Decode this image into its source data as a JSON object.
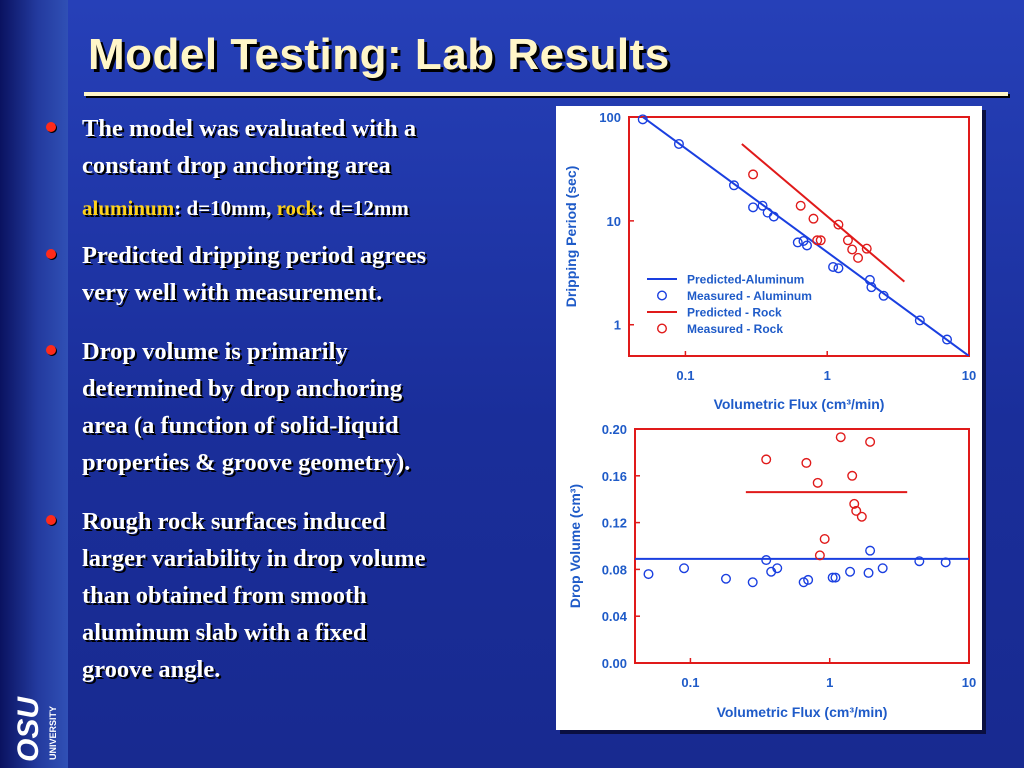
{
  "slide": {
    "title": "Model Testing: Lab Results",
    "bullet1_line1": "The model was evaluated with a",
    "bullet1_line2": "constant drop anchoring area",
    "sub_aluminum_label": "aluminum",
    "sub_aluminum_value": ": d=10mm, ",
    "sub_rock_label": "rock",
    "sub_rock_value": ": d=12mm",
    "bullet2_line1": "Predicted dripping period agrees",
    "bullet2_line2": "very well with measurement.",
    "bullet3_line1": "Drop volume is primarily",
    "bullet3_line2": "determined by drop anchoring",
    "bullet3_line3": "area (a function of solid-liquid",
    "bullet3_line4": "properties & groove geometry).",
    "bullet4_line1": "Rough rock surfaces induced",
    "bullet4_line2": "larger variability in drop volume",
    "bullet4_line3": "than obtained from smooth",
    "bullet4_line4": "aluminum slab with a fixed",
    "bullet4_line5": "groove angle.",
    "logo_text": "UNIVERSITY"
  },
  "colors": {
    "aluminum": "#1a3fe0",
    "rock": "#e01a1a",
    "axis_text": "#1f5bc8"
  },
  "chart_data": [
    {
      "type": "scatter",
      "xscale": "log",
      "yscale": "log",
      "xlim": [
        0.04,
        10
      ],
      "ylim": [
        0.5,
        100
      ],
      "xticks": [
        0.1,
        1,
        10
      ],
      "yticks": [
        1,
        10,
        100
      ],
      "xlabel": "Volumetric Flux (cm³/min)",
      "ylabel": "Dripping Period (sec)",
      "legend_position": "bottom-left",
      "legend": [
        "Predicted-Aluminum",
        "Measured - Aluminum",
        "Predicted - Rock",
        "Measured - Rock"
      ],
      "series": [
        {
          "name": "Predicted-Aluminum",
          "kind": "line",
          "color": "#1a3fe0",
          "x": [
            0.05,
            10
          ],
          "y": [
            100,
            0.5
          ]
        },
        {
          "name": "Measured - Aluminum",
          "kind": "points",
          "color": "#1a3fe0",
          "x": [
            0.05,
            0.09,
            0.22,
            0.3,
            0.35,
            0.38,
            0.42,
            0.62,
            0.68,
            0.72,
            1.1,
            1.2,
            2.0,
            2.05,
            2.5,
            4.5,
            7.0
          ],
          "y": [
            95,
            55,
            22,
            13.5,
            14,
            12,
            11,
            6.2,
            6.4,
            5.8,
            3.6,
            3.5,
            2.7,
            2.3,
            1.9,
            1.1,
            0.72
          ]
        },
        {
          "name": "Predicted - Rock",
          "kind": "line",
          "color": "#e01a1a",
          "x": [
            0.25,
            3.5
          ],
          "y": [
            55,
            2.6
          ]
        },
        {
          "name": "Measured - Rock",
          "kind": "points",
          "color": "#e01a1a",
          "x": [
            0.3,
            0.65,
            0.8,
            0.85,
            0.9,
            1.2,
            1.4,
            1.5,
            1.65,
            1.9
          ],
          "y": [
            28,
            14,
            10.5,
            6.5,
            6.5,
            9.2,
            6.5,
            5.3,
            4.4,
            5.4
          ]
        }
      ]
    },
    {
      "type": "scatter",
      "xscale": "log",
      "xlim": [
        0.04,
        10
      ],
      "ylim": [
        0,
        0.2
      ],
      "xticks": [
        0.1,
        1,
        10
      ],
      "yticks": [
        0.0,
        0.04,
        0.08,
        0.12,
        0.16,
        0.2
      ],
      "ytick_labels": [
        "0.00",
        "0.04",
        "0.08",
        "0.12",
        "0.16",
        "0.20"
      ],
      "xlabel": "Volumetric Flux (cm³/min)",
      "ylabel": "Drop Volume (cm³)",
      "series": [
        {
          "name": "Predicted-Aluminum",
          "kind": "line",
          "color": "#1a3fe0",
          "x": [
            0.04,
            10
          ],
          "y": [
            0.089,
            0.089
          ]
        },
        {
          "name": "Measured - Aluminum",
          "kind": "points",
          "color": "#1a3fe0",
          "x": [
            0.05,
            0.09,
            0.18,
            0.28,
            0.35,
            0.38,
            0.42,
            0.65,
            0.7,
            1.05,
            1.1,
            1.4,
            1.9,
            1.95,
            2.4,
            4.4,
            6.8
          ],
          "y": [
            0.076,
            0.081,
            0.072,
            0.069,
            0.088,
            0.078,
            0.081,
            0.069,
            0.071,
            0.073,
            0.073,
            0.078,
            0.077,
            0.096,
            0.081,
            0.087,
            0.086
          ]
        },
        {
          "name": "Predicted - Rock",
          "kind": "line",
          "color": "#e01a1a",
          "x": [
            0.25,
            3.6
          ],
          "y": [
            0.146,
            0.146
          ]
        },
        {
          "name": "Measured - Rock",
          "kind": "points",
          "color": "#e01a1a",
          "x": [
            0.35,
            0.68,
            0.82,
            0.85,
            0.92,
            1.2,
            1.45,
            1.5,
            1.55,
            1.7,
            1.95
          ],
          "y": [
            0.174,
            0.171,
            0.154,
            0.092,
            0.106,
            0.193,
            0.16,
            0.136,
            0.13,
            0.125,
            0.189
          ]
        }
      ]
    }
  ]
}
